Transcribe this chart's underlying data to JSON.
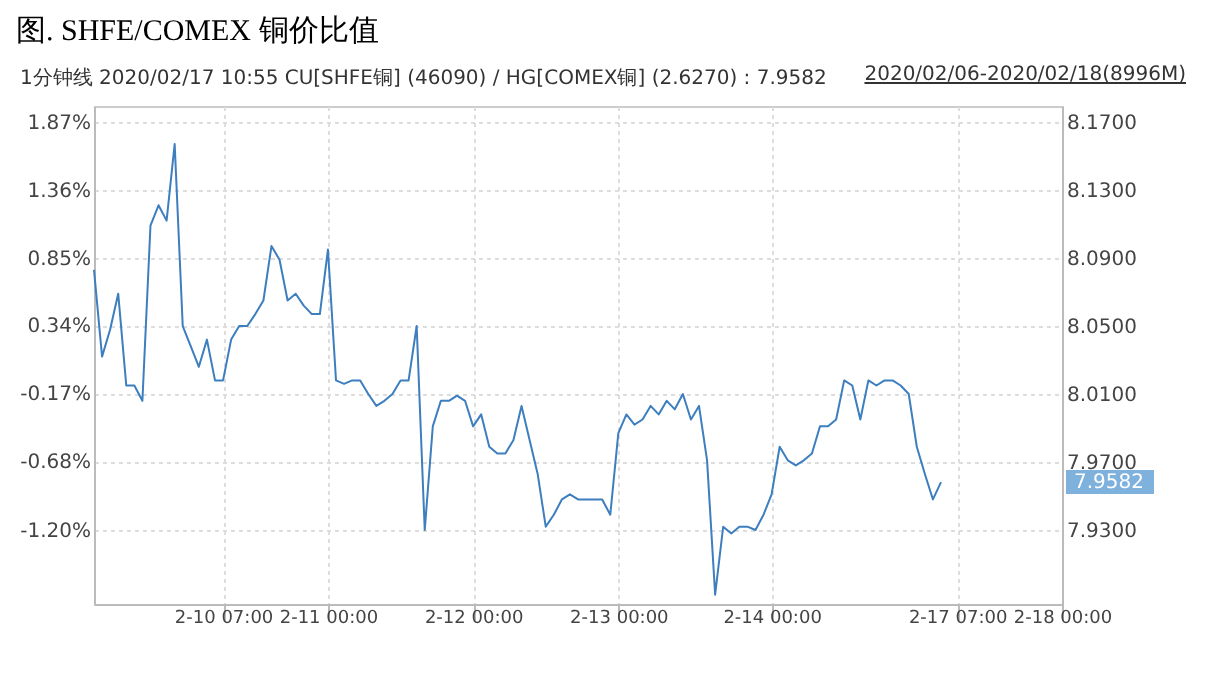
{
  "chart_data": {
    "type": "line",
    "title": "图. SHFE/COMEX 铜价比值",
    "subtitle": "1分钟线 2020/02/17 10:55 CU[SHFE铜] (46090) / HG[COMEX铜] (2.6270) : 7.9582",
    "annotations": [
      "2020/02/06-2020/02/18(8996M)",
      "7.9582"
    ],
    "categories": [
      null,
      null,
      null,
      null,
      null,
      null,
      null,
      null,
      null,
      null,
      null,
      null,
      null,
      null,
      null,
      null,
      "2-10 07:00",
      null,
      null,
      null,
      null,
      null,
      null,
      null,
      null,
      null,
      null,
      null,
      null,
      "2-11 00:00",
      null,
      null,
      null,
      null,
      null,
      null,
      null,
      null,
      null,
      null,
      null,
      null,
      null,
      null,
      null,
      null,
      null,
      "2-12 00:00",
      null,
      null,
      null,
      null,
      null,
      null,
      null,
      null,
      null,
      null,
      null,
      null,
      null,
      null,
      null,
      null,
      null,
      "2-13 00:00",
      null,
      null,
      null,
      null,
      null,
      null,
      null,
      null,
      null,
      null,
      null,
      null,
      null,
      null,
      null,
      null,
      null,
      null,
      "2-14 00:00",
      null,
      null,
      null,
      null,
      null,
      null,
      null,
      null,
      null,
      null,
      null,
      null,
      null,
      null,
      null,
      null,
      null,
      null,
      null,
      null,
      null,
      null,
      "2-17 07:00",
      null,
      null,
      null,
      null,
      null,
      null,
      null,
      null,
      null,
      null,
      null,
      null,
      "2-18 00:00"
    ],
    "series": [
      {
        "color": "#3d7ebf",
        "axis": "y2",
        "values": [
          8.083,
          8.032,
          8.048,
          8.069,
          8.015,
          8.015,
          8.006,
          8.109,
          8.121,
          8.112,
          8.157,
          8.05,
          8.038,
          8.026,
          8.042,
          8.018,
          8.018,
          8.042,
          8.05,
          8.05,
          8.057,
          8.065,
          8.097,
          8.089,
          8.065,
          8.069,
          8.062,
          8.057,
          8.057,
          8.095,
          8.018,
          8.016,
          8.018,
          8.018,
          8.01,
          8.003,
          8.006,
          8.01,
          8.018,
          8.018,
          8.05,
          7.93,
          7.991,
          8.006,
          8.006,
          8.009,
          8.006,
          7.991,
          7.998,
          7.979,
          7.975,
          7.975,
          7.983,
          8.003,
          7.983,
          7.963,
          7.932,
          7.939,
          7.948,
          7.951,
          7.948,
          7.948,
          7.948,
          7.948,
          7.939,
          7.987,
          7.998,
          7.992,
          7.995,
          8.003,
          7.998,
          8.006,
          8.001,
          8.01,
          7.995,
          8.003,
          7.971,
          7.892,
          7.932,
          7.928,
          7.932,
          7.932,
          7.93,
          7.939,
          7.951,
          7.979,
          7.971,
          7.968,
          7.971,
          7.975,
          7.991,
          7.991,
          7.995,
          8.018,
          8.015,
          7.995,
          8.018,
          8.015,
          8.018,
          8.018,
          8.015,
          8.01,
          7.979,
          7.963,
          7.948,
          7.9582,
          null,
          null,
          null,
          null,
          null,
          null,
          null,
          null,
          null,
          null,
          null,
          null,
          null,
          null,
          null
        ]
      }
    ],
    "ylim": [
      -1.755,
      1.99
    ],
    "yticks": [
      {
        "value": 1.87,
        "label": "1.87%"
      },
      {
        "value": 1.36,
        "label": "1.36%"
      },
      {
        "value": 0.85,
        "label": "0.85%"
      },
      {
        "value": 0.34,
        "label": "0.34%"
      },
      {
        "value": -0.17,
        "label": "-0.17%"
      },
      {
        "value": -0.68,
        "label": "-0.68%"
      },
      {
        "value": -1.2,
        "label": "-1.20%"
      }
    ],
    "y2lim": [
      7.8865,
      8.1794
    ],
    "y2ticks": [
      {
        "value": 8.17,
        "label": "8.1700"
      },
      {
        "value": 8.13,
        "label": "8.1300"
      },
      {
        "value": 8.09,
        "label": "8.0900"
      },
      {
        "value": 8.05,
        "label": "8.0500"
      },
      {
        "value": 8.01,
        "label": "8.0100"
      },
      {
        "value": 7.97,
        "label": "7.9700"
      },
      {
        "value": 7.93,
        "label": "7.9300"
      }
    ],
    "grid": true,
    "line_style": "solid"
  }
}
